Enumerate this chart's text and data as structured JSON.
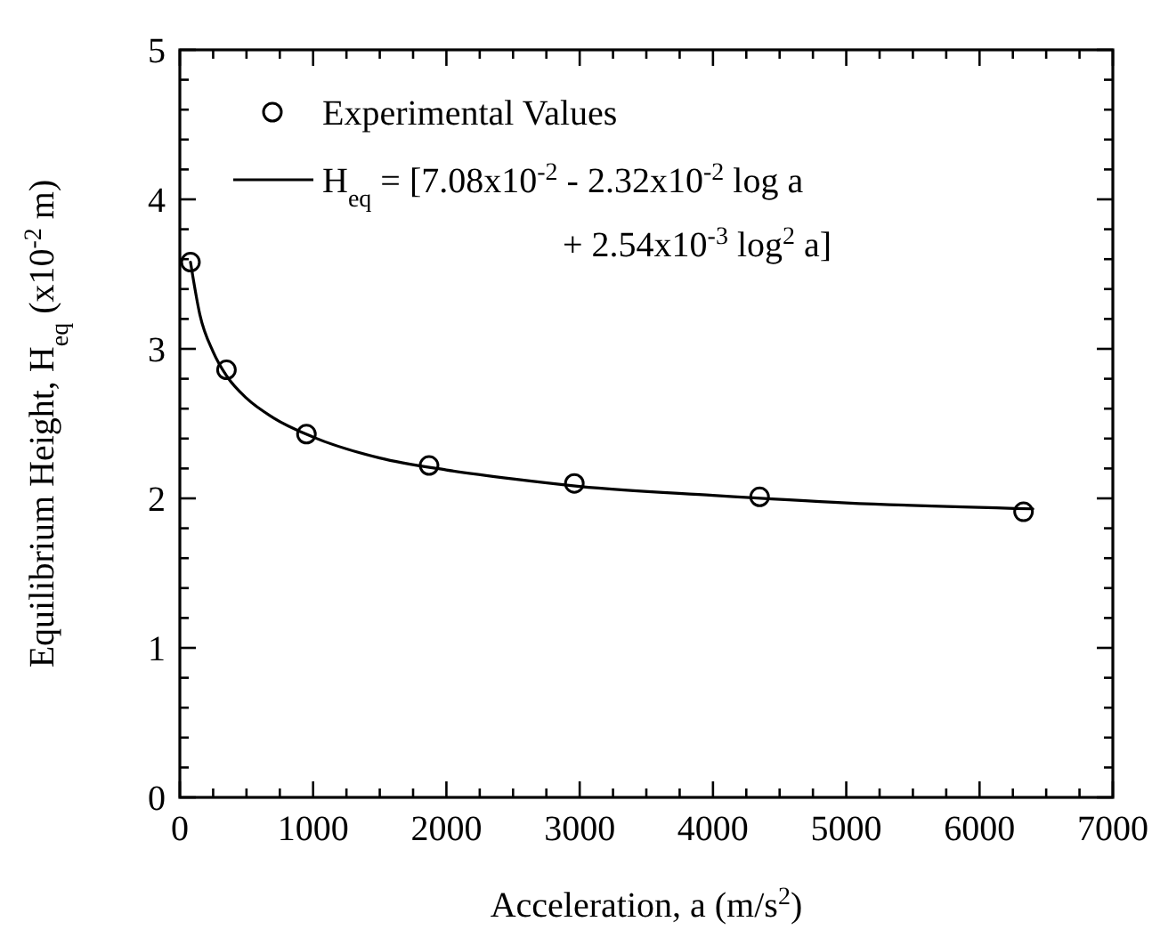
{
  "chart_data": {
    "type": "scatter",
    "xlabel": "Acceleration, a (m/s$^{2}$)",
    "ylabel": "Equilibrium Height, H$_{eq}$ (x10$^{-2}$ m)",
    "xlim": [
      0,
      7000
    ],
    "ylim": [
      0,
      5
    ],
    "xticks": [
      0,
      {
        "value": 250,
        "label": null
      },
      {
        "value": 500,
        "label": null
      },
      {
        "value": 750,
        "label": null
      },
      1000,
      {
        "value": 1250,
        "label": null
      },
      {
        "value": 1500,
        "label": null
      },
      {
        "value": 1750,
        "label": null
      },
      2000,
      {
        "value": 2250,
        "label": null
      },
      {
        "value": 2500,
        "label": null
      },
      {
        "value": 2750,
        "label": null
      },
      3000,
      {
        "value": 3250,
        "label": null
      },
      {
        "value": 3500,
        "label": null
      },
      {
        "value": 3750,
        "label": null
      },
      4000,
      {
        "value": 4250,
        "label": null
      },
      {
        "value": 4500,
        "label": null
      },
      {
        "value": 4750,
        "label": null
      },
      5000,
      {
        "value": 5250,
        "label": null
      },
      {
        "value": 5500,
        "label": null
      },
      {
        "value": 5750,
        "label": null
      },
      6000,
      {
        "value": 6250,
        "label": null
      },
      {
        "value": 6500,
        "label": null
      },
      {
        "value": 6750,
        "label": null
      },
      7000
    ],
    "yticks": [
      0,
      {
        "value": 0.2,
        "label": null
      },
      {
        "value": 0.4,
        "label": null
      },
      {
        "value": 0.6,
        "label": null
      },
      {
        "value": 0.8,
        "label": null
      },
      1,
      {
        "value": 1.2,
        "label": null
      },
      {
        "value": 1.4,
        "label": null
      },
      {
        "value": 1.6,
        "label": null
      },
      {
        "value": 1.8,
        "label": null
      },
      2,
      {
        "value": 2.2,
        "label": null
      },
      {
        "value": 2.4,
        "label": null
      },
      {
        "value": 2.6,
        "label": null
      },
      {
        "value": 2.8,
        "label": null
      },
      3,
      {
        "value": 3.2,
        "label": null
      },
      {
        "value": 3.4,
        "label": null
      },
      {
        "value": 3.6,
        "label": null
      },
      {
        "value": 3.8,
        "label": null
      },
      4,
      {
        "value": 4.2,
        "label": null
      },
      {
        "value": 4.4,
        "label": null
      },
      {
        "value": 4.6,
        "label": null
      },
      {
        "value": 4.8,
        "label": null
      },
      5
    ],
    "grid": false,
    "legend": "top left",
    "series": [
      {
        "name": "Experimental Values",
        "marker": "circle",
        "color": "#000000",
        "x": [
          80,
          350,
          950,
          1870,
          2960,
          4350,
          6330
        ],
        "values": [
          3.58,
          2.86,
          2.43,
          2.22,
          2.1,
          2.01,
          1.91
        ]
      },
      {
        "name": "H$_{eq}$ = [7.08x10$^{-2}$ -  2.32x10$^{-2}$ log a + 2.54x10$^{-3}$ log$^{2}$ a]",
        "type": "line",
        "marker": "none",
        "line_style": "solid",
        "color": "#000000",
        "x": [
          80,
          150,
          250,
          350,
          500,
          700,
          1000,
          1500,
          2000,
          2500,
          3000,
          4000,
          5000,
          6400
        ],
        "values": [
          3.58,
          3.23,
          2.98,
          2.82,
          2.67,
          2.54,
          2.41,
          2.27,
          2.19,
          2.13,
          2.08,
          2.02,
          1.97,
          1.93
        ]
      }
    ]
  }
}
